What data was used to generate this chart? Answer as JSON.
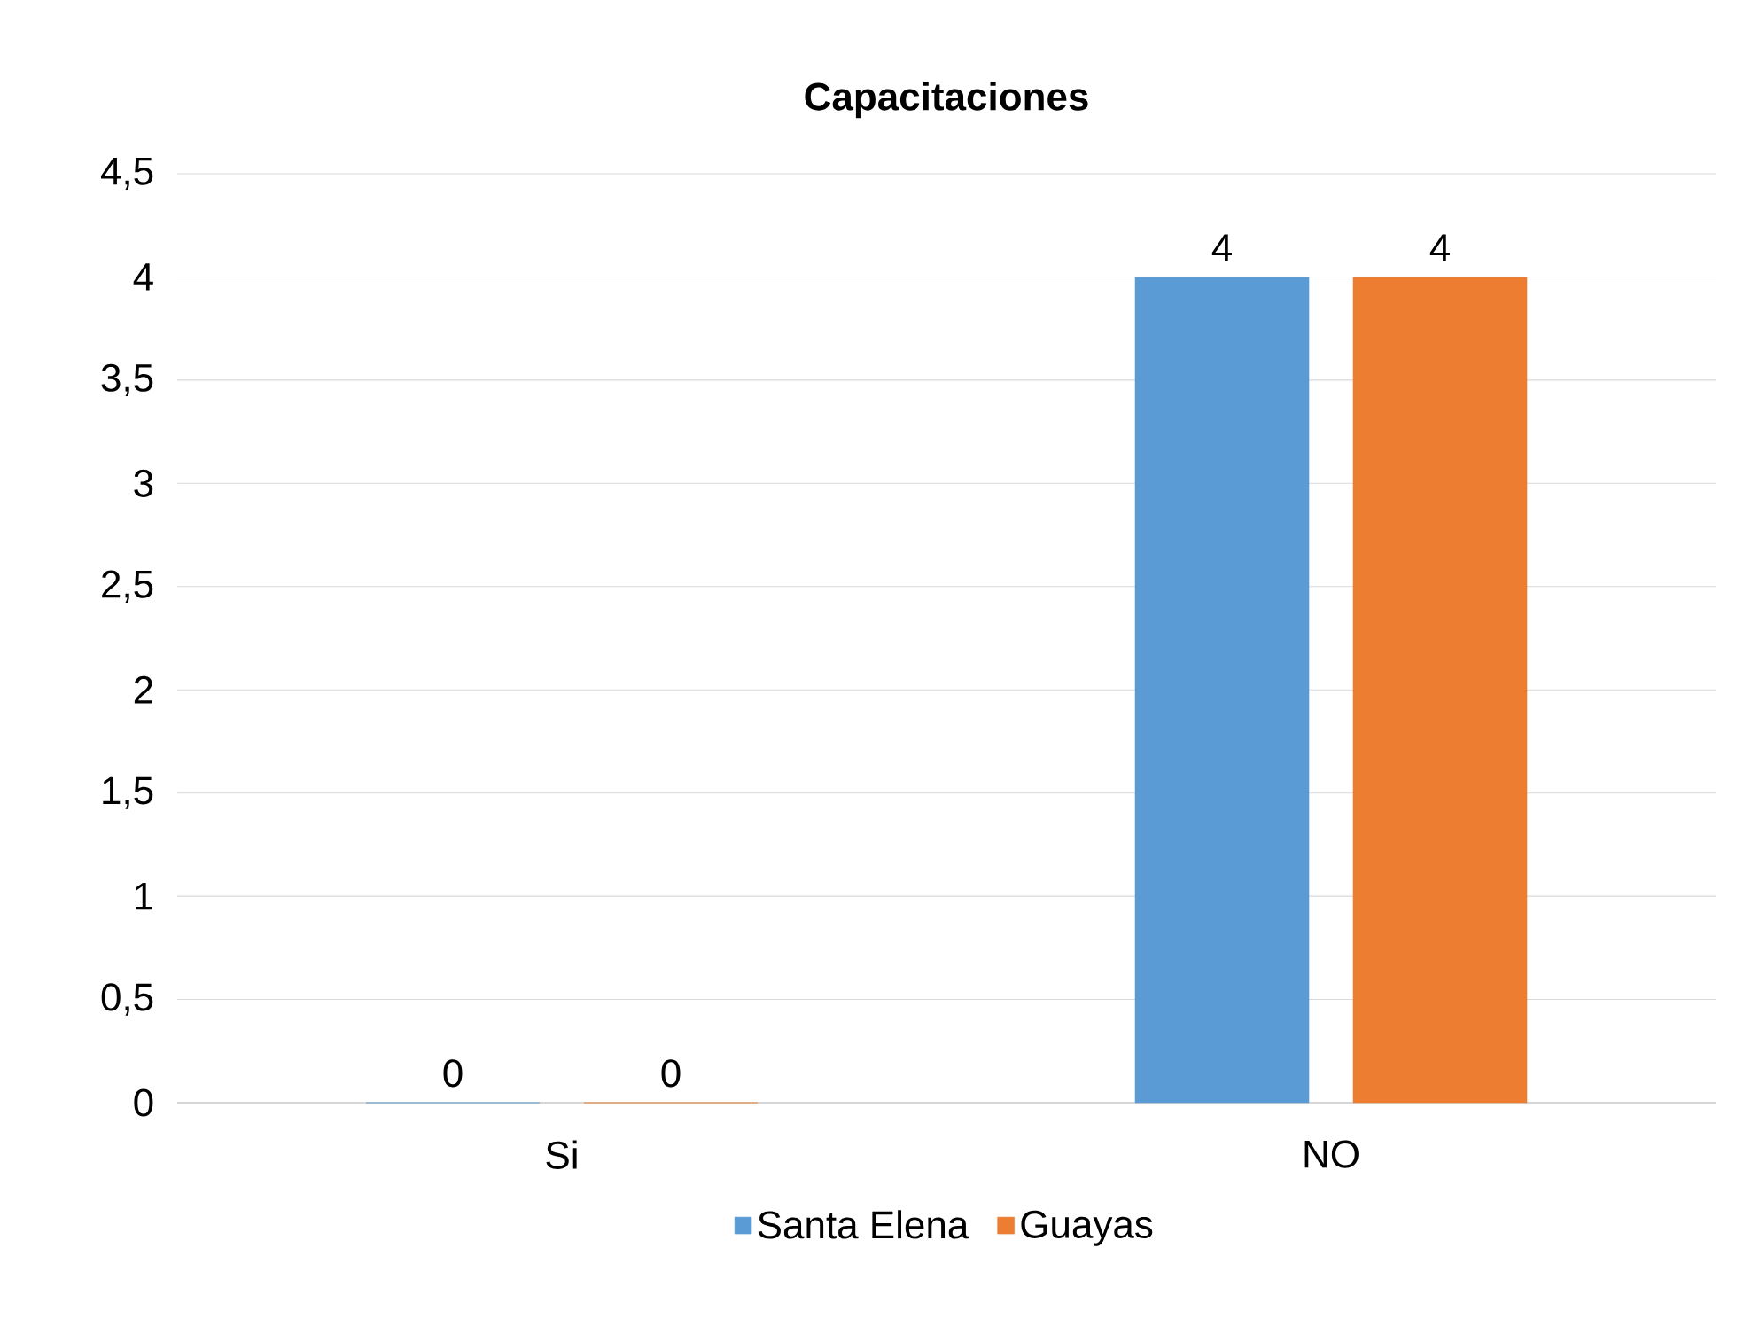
{
  "chart_data": {
    "type": "bar",
    "title": "Capacitaciones",
    "categories": [
      "Si",
      "NO"
    ],
    "series": [
      {
        "name": "Santa Elena",
        "color": "#5b9bd5",
        "values": [
          0,
          4
        ]
      },
      {
        "name": "Guayas",
        "color": "#ed7d31",
        "values": [
          0,
          4
        ]
      }
    ],
    "ylim": [
      0,
      4.5
    ],
    "yticks": [
      0,
      {
        "value": 0.5,
        "label": "0,5"
      },
      1,
      {
        "value": 1.5,
        "label": "1,5"
      },
      2,
      {
        "value": 2.5,
        "label": "2,5"
      },
      3,
      {
        "value": 3.5,
        "label": "3,5"
      },
      4,
      {
        "value": 4.5,
        "label": "4,5"
      }
    ],
    "grid": "y",
    "legend": "bottom",
    "data_labels": true
  }
}
